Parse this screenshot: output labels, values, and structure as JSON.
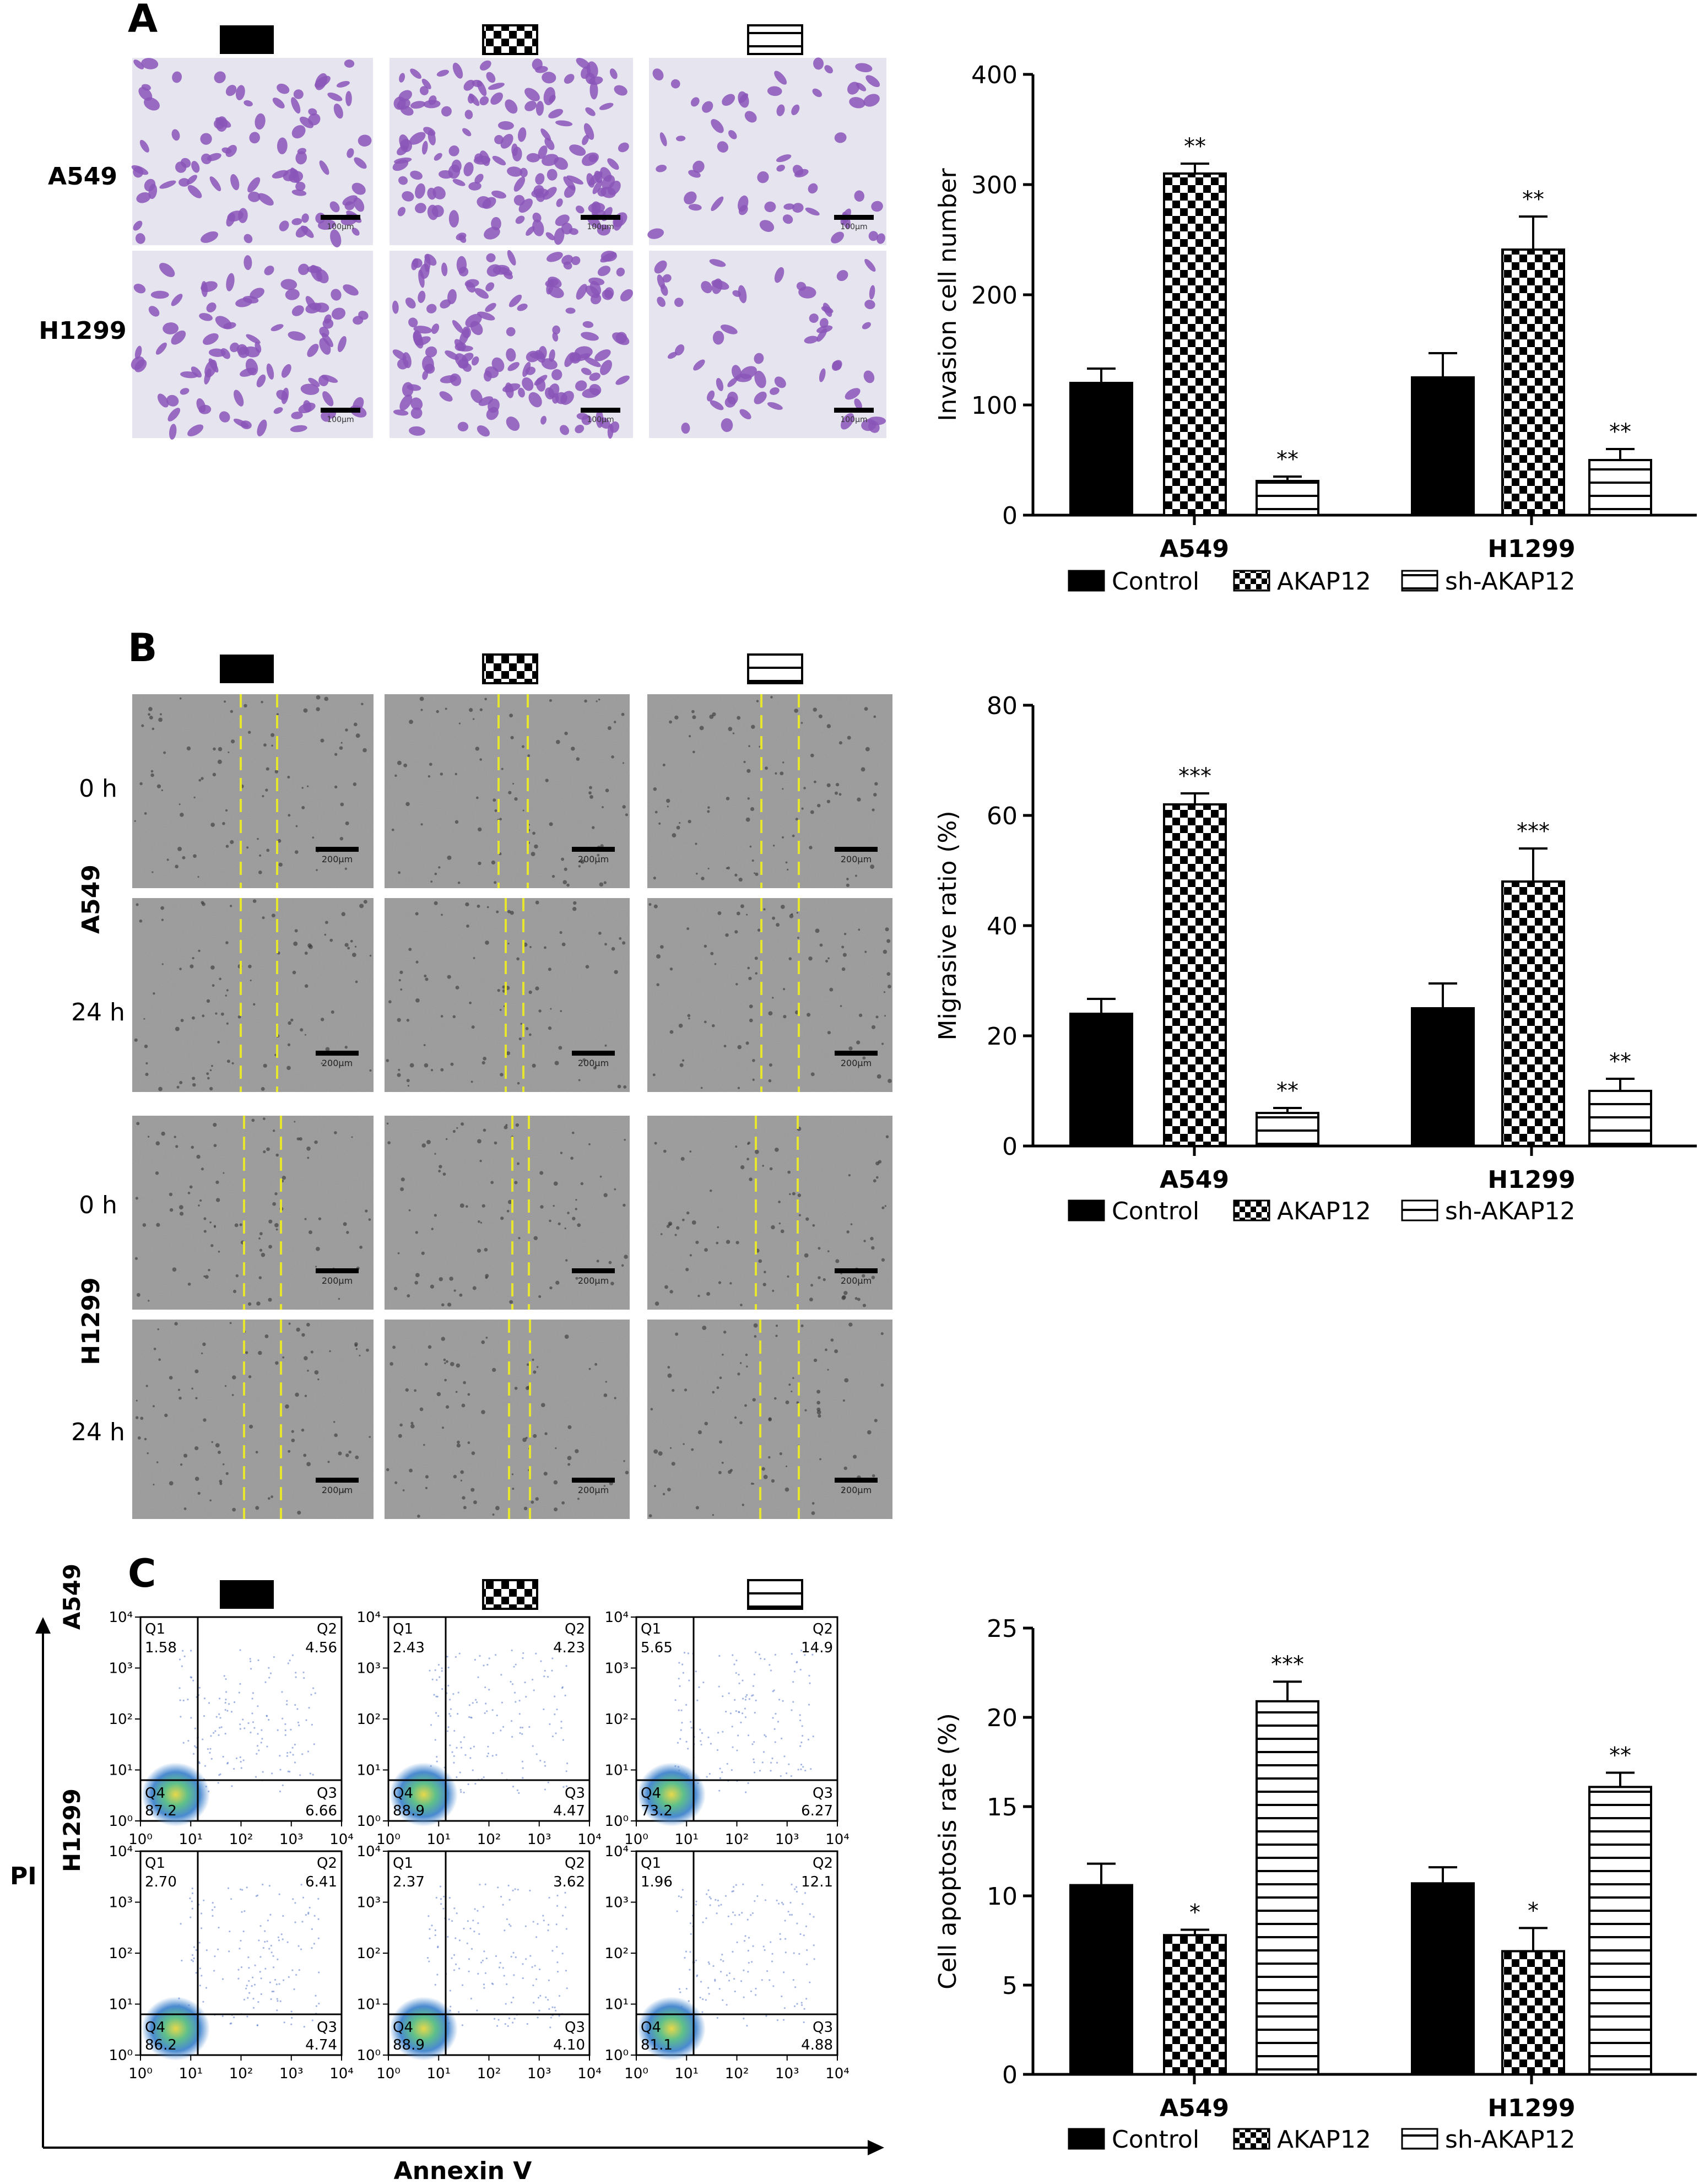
{
  "panels": [
    {
      "letter": "A",
      "cells": [
        "A549",
        "H1299"
      ]
    },
    {
      "letter": "B",
      "cells": [
        "A549",
        "H1299"
      ],
      "times": [
        "0 h",
        "24 h"
      ]
    },
    {
      "letter": "C",
      "cells": [
        "A549",
        "H1299"
      ],
      "xaxis": "Annexin V",
      "yaxis": "PI"
    }
  ],
  "scale_bars": {
    "A": "100µm",
    "B": "200µm"
  },
  "groups": [
    "Control",
    "AKAP12",
    "sh-AKAP12"
  ],
  "colors": {
    "control": "#000000",
    "background": "#ffffff",
    "cell_stain": "#8a55b8",
    "wound_line": "#e6e62e",
    "micro_bg_A": "#e6e4ee",
    "micro_bg_B": "#9a9a9a"
  },
  "flow": {
    "tick_labels": [
      "10⁰",
      "10¹",
      "10²",
      "10³",
      "10⁴"
    ],
    "quadrant_names": [
      "Q1",
      "Q2",
      "Q3",
      "Q4"
    ],
    "plots": [
      {
        "cell": "A549",
        "group": "Control",
        "q1": "1.58",
        "q2": "4.56",
        "q3": "6.66",
        "q4": "87.2"
      },
      {
        "cell": "A549",
        "group": "AKAP12",
        "q1": "2.43",
        "q2": "4.23",
        "q3": "4.47",
        "q4": "88.9"
      },
      {
        "cell": "A549",
        "group": "sh-AKAP12",
        "q1": "5.65",
        "q2": "14.9",
        "q3": "6.27",
        "q4": "73.2"
      },
      {
        "cell": "H1299",
        "group": "Control",
        "q1": "2.70",
        "q2": "6.41",
        "q3": "4.74",
        "q4": "86.2"
      },
      {
        "cell": "H1299",
        "group": "AKAP12",
        "q1": "2.37",
        "q2": "3.62",
        "q3": "4.10",
        "q4": "88.9"
      },
      {
        "cell": "H1299",
        "group": "sh-AKAP12",
        "q1": "1.96",
        "q2": "12.1",
        "q3": "4.88",
        "q4": "81.1"
      }
    ]
  },
  "chart_data": [
    {
      "type": "bar",
      "title": "",
      "xlabel": "",
      "ylabel": "Invasion cell number",
      "ylim": [
        0,
        400
      ],
      "yticks": [
        0,
        100,
        200,
        300,
        400
      ],
      "categories": [
        "A549",
        "H1299"
      ],
      "series": [
        {
          "name": "Control",
          "values": [
            120,
            125
          ],
          "errors": [
            13,
            22
          ],
          "sig": [
            "",
            ""
          ]
        },
        {
          "name": "AKAP12",
          "values": [
            310,
            241
          ],
          "errors": [
            9,
            30
          ],
          "sig": [
            "**",
            "**"
          ]
        },
        {
          "name": "sh-AKAP12",
          "values": [
            31,
            50
          ],
          "errors": [
            4,
            10
          ],
          "sig": [
            "**",
            "**"
          ]
        }
      ],
      "legend": "bottom"
    },
    {
      "type": "bar",
      "title": "",
      "xlabel": "",
      "ylabel": "Migrasive ratio (%)",
      "ylim": [
        0,
        80
      ],
      "yticks": [
        0,
        20,
        40,
        60,
        80
      ],
      "categories": [
        "A549",
        "H1299"
      ],
      "series": [
        {
          "name": "Control",
          "values": [
            24,
            25
          ],
          "errors": [
            2.7,
            4.5
          ],
          "sig": [
            "",
            ""
          ]
        },
        {
          "name": "AKAP12",
          "values": [
            62,
            48
          ],
          "errors": [
            2,
            6
          ],
          "sig": [
            "***",
            "***"
          ]
        },
        {
          "name": "sh-AKAP12",
          "values": [
            6,
            10
          ],
          "errors": [
            0.9,
            2.2
          ],
          "sig": [
            "**",
            "**"
          ]
        }
      ],
      "legend": "bottom"
    },
    {
      "type": "bar",
      "title": "",
      "xlabel": "",
      "ylabel": "Cell apoptosis rate (%)",
      "ylim": [
        0,
        25
      ],
      "yticks": [
        0,
        5,
        10,
        15,
        20,
        25
      ],
      "categories": [
        "A549",
        "H1299"
      ],
      "series": [
        {
          "name": "Control",
          "values": [
            10.6,
            10.7
          ],
          "errors": [
            1.2,
            0.9
          ],
          "sig": [
            "",
            ""
          ]
        },
        {
          "name": "AKAP12",
          "values": [
            7.8,
            6.9
          ],
          "errors": [
            0.3,
            1.3
          ],
          "sig": [
            "*",
            "*"
          ]
        },
        {
          "name": "sh-AKAP12",
          "values": [
            20.9,
            16.1
          ],
          "errors": [
            1.1,
            0.8
          ],
          "sig": [
            "***",
            "**"
          ]
        }
      ],
      "legend": "bottom"
    }
  ]
}
